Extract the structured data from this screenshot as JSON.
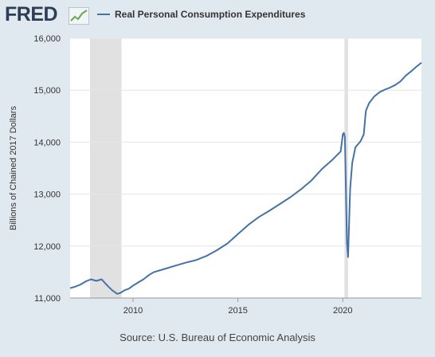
{
  "header": {
    "logo_text": "FRED",
    "legend_label": "Real Personal Consumption Expenditures",
    "series_color": "#4572a7"
  },
  "source": "Source: U.S. Bureau of Economic Analysis",
  "chart_data": {
    "type": "line",
    "title": "",
    "xlabel": "",
    "ylabel": "Billions of Chained 2017 Dollars",
    "xlim": [
      2007.0,
      2023.75
    ],
    "ylim": [
      11000,
      16000
    ],
    "xticks": [
      2010,
      2015,
      2020
    ],
    "xtick_labels": [
      "2010",
      "2015",
      "2020"
    ],
    "yticks": [
      11000,
      12000,
      13000,
      14000,
      15000,
      16000
    ],
    "ytick_labels": [
      "11,000",
      "12,000",
      "13,000",
      "14,000",
      "15,000",
      "16,000"
    ],
    "grid": "horizontal",
    "recessions": [
      [
        2007.95,
        2009.45
      ],
      [
        2020.08,
        2020.25
      ]
    ],
    "series": [
      {
        "name": "Real Personal Consumption Expenditures",
        "color": "#4572a7",
        "x": [
          2007.0,
          2007.25,
          2007.5,
          2007.75,
          2008.0,
          2008.25,
          2008.5,
          2008.75,
          2009.0,
          2009.25,
          2009.4,
          2009.6,
          2009.8,
          2010.0,
          2010.25,
          2010.5,
          2010.75,
          2011.0,
          2011.5,
          2012.0,
          2012.5,
          2013.0,
          2013.5,
          2014.0,
          2014.5,
          2015.0,
          2015.5,
          2016.0,
          2016.5,
          2017.0,
          2017.5,
          2018.0,
          2018.5,
          2019.0,
          2019.5,
          2019.9,
          2020.0,
          2020.05,
          2020.1,
          2020.2,
          2020.25,
          2020.35,
          2020.45,
          2020.6,
          2020.85,
          2021.0,
          2021.1,
          2021.25,
          2021.5,
          2021.75,
          2022.0,
          2022.25,
          2022.5,
          2022.75,
          2023.0,
          2023.25,
          2023.5,
          2023.75
        ],
        "values": [
          11190,
          11220,
          11260,
          11320,
          11360,
          11330,
          11360,
          11250,
          11150,
          11080,
          11100,
          11150,
          11180,
          11240,
          11300,
          11360,
          11440,
          11500,
          11560,
          11620,
          11680,
          11730,
          11810,
          11920,
          12050,
          12230,
          12410,
          12560,
          12680,
          12810,
          12940,
          13090,
          13260,
          13480,
          13660,
          13820,
          14150,
          14180,
          14100,
          12050,
          11790,
          13100,
          13600,
          13900,
          14020,
          14150,
          14600,
          14750,
          14880,
          14960,
          15010,
          15050,
          15100,
          15170,
          15280,
          15360,
          15450,
          15530
        ]
      }
    ]
  }
}
